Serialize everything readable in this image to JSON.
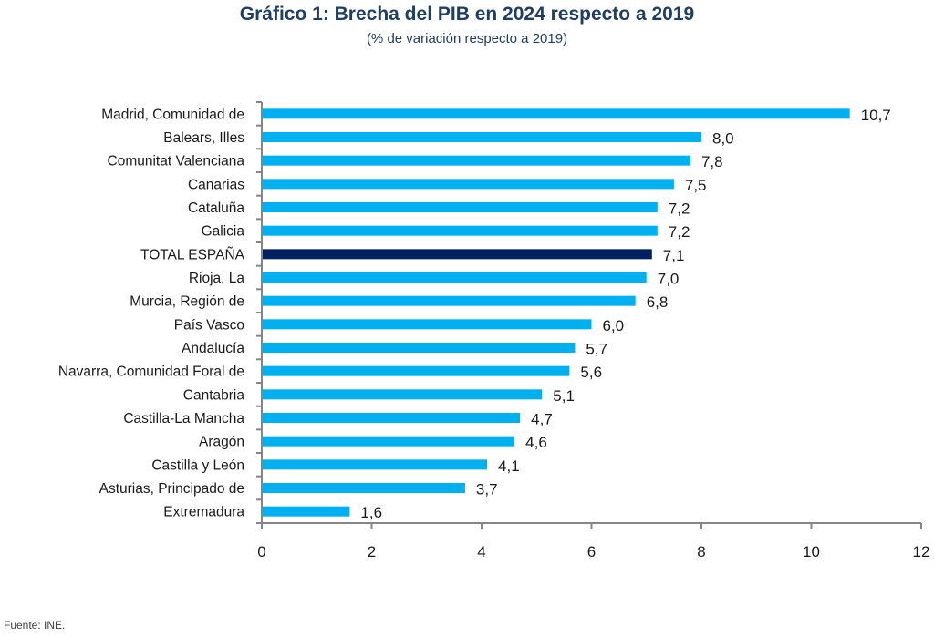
{
  "chart_data": {
    "type": "bar",
    "orientation": "horizontal",
    "title": "Gráfico 1: Brecha del PIB en 2024 respecto a 2019",
    "subtitle": "(% de variación respecto a 2019)",
    "xlabel": "",
    "ylabel": "",
    "xlim": [
      0,
      12
    ],
    "xticks": [
      0,
      2,
      4,
      6,
      8,
      10,
      12
    ],
    "grid": false,
    "legend": "none",
    "categories": [
      "Madrid, Comunidad de",
      "Balears, Illes",
      "Comunitat Valenciana",
      "Canarias",
      "Cataluña",
      "Galicia",
      "TOTAL ESPAÑA",
      "Rioja, La",
      "Murcia, Región de",
      "País Vasco",
      "Andalucía",
      "Navarra, Comunidad Foral de",
      "Cantabria",
      "Castilla-La Mancha",
      "Aragón",
      "Castilla y León",
      "Asturias, Principado de",
      "Extremadura"
    ],
    "values": [
      10.7,
      8.0,
      7.8,
      7.5,
      7.2,
      7.2,
      7.1,
      7.0,
      6.8,
      6.0,
      5.7,
      5.6,
      5.1,
      4.7,
      4.6,
      4.1,
      3.7,
      1.6
    ],
    "data_labels": [
      "10,7",
      "8,0",
      "7,8",
      "7,5",
      "7,2",
      "7,2",
      "7,1",
      "7,0",
      "6,8",
      "6,0",
      "5,7",
      "5,6",
      "5,1",
      "4,7",
      "4,6",
      "4,1",
      "3,7",
      "1,6"
    ],
    "highlight_category": "TOTAL ESPAÑA",
    "colors": {
      "bar": "#00b0f0",
      "highlight": "#002060",
      "axis": "#868686",
      "title": "#1f3e63"
    }
  },
  "source": "Fuente: INE."
}
